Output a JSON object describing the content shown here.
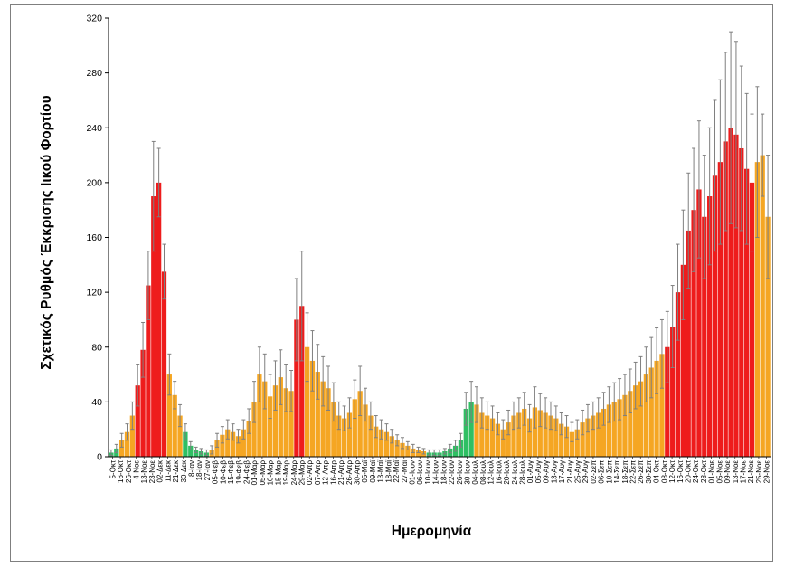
{
  "chart_data": {
    "type": "bar",
    "title": "",
    "xlabel": "Ημερομηνία",
    "ylabel": "Σχετικός Ρυθμός Έκκρισης Ιικού Φορτίου",
    "ylim": [
      0,
      320
    ],
    "yticks": [
      0,
      40,
      80,
      120,
      160,
      200,
      240,
      280,
      320
    ],
    "grid": false,
    "legend": "none",
    "colors": {
      "green": "#2fbf63",
      "orange": "#f5a623",
      "red": "#ee1c1c",
      "error_bar": "#7f7f7f",
      "axis": "#000000"
    },
    "x_tick_labels": [
      "5-Οκτ",
      "16-Οκτ",
      "26-Οκτ",
      "4-Νοε",
      "13-Νοε",
      "23-Νοε",
      "02-Δεκ",
      "11-Δεκ",
      "21-Δεκ",
      "30-Δεκ",
      "8-Ιαν",
      "18-Ιαν",
      "27-Ιαν",
      "05-Φεβ",
      "10-Φεβ",
      "15-Φεβ",
      "19-Φεβ",
      "24-Φεβ",
      "01-Μαρ",
      "05-Μαρ",
      "10-Μαρ",
      "15-Μαρ",
      "19-Μαρ",
      "24-Μαρ",
      "29-Μαρ",
      "02-Απρ",
      "07-Απρ",
      "12-Απρ",
      "16-Απρ",
      "21-Απρ",
      "26-Απρ",
      "30-Απρ",
      "05-Μαϊ",
      "09-Μαϊ",
      "13-Μαϊ",
      "18-Μαϊ",
      "22-Μαϊ",
      "27-Μαϊ",
      "01-Ιουν",
      "06-Ιουν",
      "10-Ιουν",
      "14-Ιουν",
      "18-Ιουν",
      "22-Ιουν",
      "26-Ιουν",
      "30-Ιουν",
      "04-Ιουλ",
      "08-Ιουλ",
      "12-Ιουλ",
      "16-Ιουλ",
      "20-Ιουλ",
      "24-Ιουλ",
      "28-Ιουλ",
      "01-Αυγ",
      "05-Αυγ",
      "09-Αυγ",
      "13-Αυγ",
      "17-Αυγ",
      "21-Αυγ",
      "25-Αυγ",
      "29-Αυγ",
      "02-Σεπ",
      "06-Σεπ",
      "10-Σεπ",
      "14-Σεπ",
      "18-Σεπ",
      "22-Σεπ",
      "26-Σεπ",
      "30-Σεπ",
      "04-Οκτ",
      "08-Οκτ",
      "12-Οκτ",
      "16-Οκτ",
      "20-Οκτ",
      "24-Οκτ",
      "28-Οκτ",
      "01-Νοε",
      "05-Νοε",
      "09-Νοε",
      "13-Νοε",
      "17-Νοε",
      "21-Νοε",
      "25-Νοε",
      "29-Νοε"
    ],
    "series": [
      {
        "bar_colors": [
          "green",
          "green",
          "orange",
          "orange",
          "orange",
          "red",
          "red",
          "red",
          "red",
          "red",
          "red",
          "orange",
          "orange",
          "orange",
          "green",
          "green",
          "green",
          "green",
          "green",
          "orange",
          "orange",
          "orange",
          "orange",
          "orange",
          "orange",
          "orange",
          "orange",
          "orange",
          "orange",
          "orange",
          "orange",
          "orange",
          "orange",
          "orange",
          "orange",
          "red",
          "red",
          "orange",
          "orange",
          "orange",
          "orange",
          "orange",
          "orange",
          "orange",
          "orange",
          "orange",
          "orange",
          "orange",
          "orange",
          "orange",
          "orange",
          "orange",
          "orange",
          "orange",
          "orange",
          "orange",
          "orange",
          "orange",
          "orange",
          "orange",
          "green",
          "green",
          "green",
          "green",
          "green",
          "green",
          "green",
          "green",
          "green",
          "orange",
          "orange",
          "orange",
          "orange",
          "orange",
          "orange",
          "orange",
          "orange",
          "orange",
          "orange",
          "orange",
          "orange",
          "orange",
          "orange",
          "orange",
          "orange",
          "orange",
          "orange",
          "orange",
          "orange",
          "orange",
          "orange",
          "orange",
          "orange",
          "orange",
          "orange",
          "orange",
          "orange",
          "orange",
          "orange",
          "orange",
          "orange",
          "orange",
          "orange",
          "orange",
          "orange",
          "red",
          "red",
          "red",
          "red",
          "red",
          "red",
          "red",
          "red",
          "red",
          "red",
          "red",
          "red",
          "red",
          "red",
          "red",
          "red",
          "red"
        ],
        "values": [
          3,
          6,
          12,
          18,
          30,
          52,
          78,
          125,
          190,
          200,
          135,
          60,
          45,
          30,
          18,
          8,
          5,
          4,
          3,
          5,
          12,
          16,
          20,
          18,
          15,
          20,
          26,
          40,
          60,
          55,
          44,
          52,
          58,
          50,
          48,
          100,
          110,
          80,
          70,
          62,
          55,
          50,
          40,
          30,
          28,
          32,
          42,
          48,
          38,
          30,
          22,
          20,
          18,
          15,
          12,
          10,
          8,
          6,
          5,
          4,
          3,
          3,
          3,
          4,
          6,
          8,
          12,
          35,
          40,
          38,
          32,
          30,
          28,
          24,
          20,
          25,
          30,
          32,
          35,
          28,
          36,
          34,
          32,
          30,
          28,
          24,
          22,
          18,
          20,
          25,
          28,
          30,
          32,
          35,
          38,
          40,
          42,
          45,
          48,
          52,
          55,
          60,
          65,
          70,
          75,
          80,
          95,
          120,
          140,
          165,
          180,
          195,
          175,
          190,
          205,
          215,
          230,
          240,
          235,
          225,
          210,
          200,
          215,
          220,
          175
        ],
        "errors": [
          2,
          3,
          5,
          6,
          10,
          15,
          20,
          25,
          40,
          25,
          20,
          15,
          10,
          8,
          6,
          3,
          2,
          2,
          2,
          3,
          5,
          6,
          7,
          6,
          5,
          7,
          9,
          15,
          20,
          20,
          16,
          18,
          20,
          17,
          15,
          30,
          40,
          25,
          22,
          20,
          18,
          16,
          14,
          10,
          9,
          11,
          14,
          18,
          12,
          10,
          8,
          7,
          6,
          5,
          4,
          4,
          3,
          3,
          2,
          2,
          2,
          2,
          2,
          2,
          3,
          4,
          5,
          12,
          15,
          13,
          11,
          10,
          9,
          8,
          7,
          9,
          10,
          11,
          12,
          10,
          15,
          12,
          11,
          10,
          9,
          8,
          8,
          7,
          7,
          9,
          10,
          10,
          11,
          12,
          13,
          14,
          15,
          15,
          16,
          17,
          18,
          20,
          22,
          24,
          25,
          26,
          30,
          35,
          40,
          42,
          45,
          50,
          45,
          50,
          55,
          60,
          65,
          70,
          68,
          60,
          55,
          50,
          55,
          30,
          45
        ]
      }
    ]
  }
}
